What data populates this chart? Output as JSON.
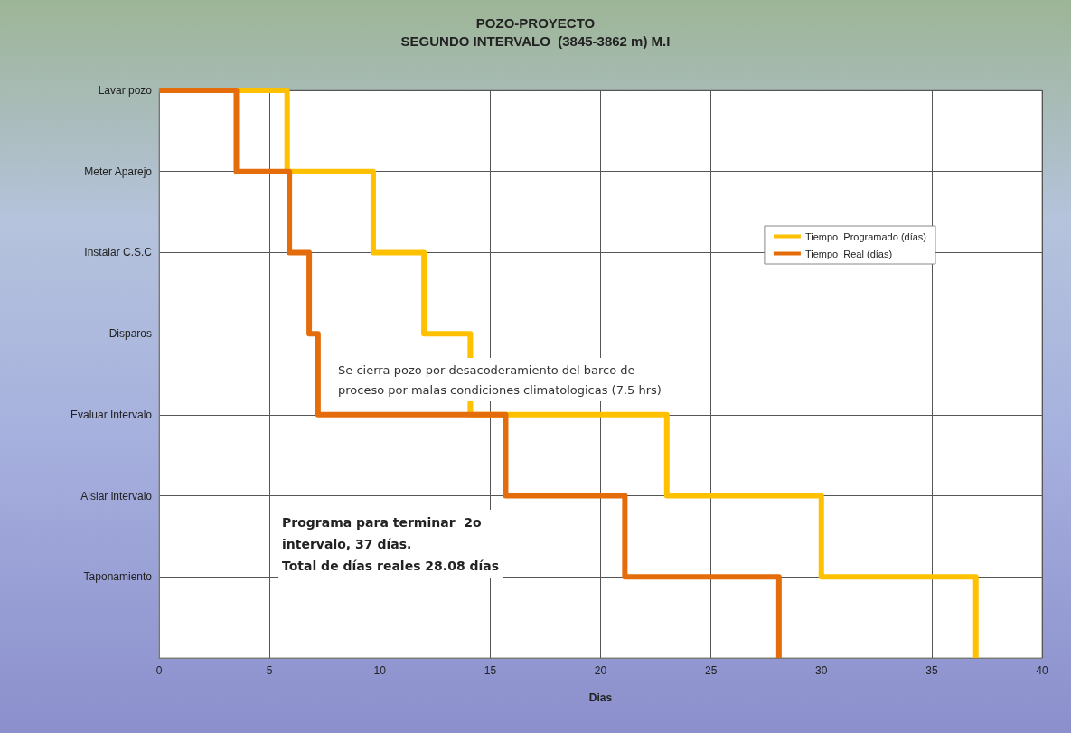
{
  "chart_data": {
    "type": "step",
    "title": "POZO-PROYECTO\nSEGUNDO INTERVALO  (3845-3862 m) M.I",
    "xlabel": "Dias",
    "orientation": "horizontal",
    "categories": [
      "Lavar pozo",
      "Meter Aparejo",
      "Instalar C.S.C",
      "Disparos",
      "Evaluar Intervalo",
      "Aislar intervalo",
      "Taponamiento",
      null
    ],
    "series": [
      {
        "name": "Tiempo  Programado (días)",
        "color": "#ffc000",
        "values": [
          0,
          5.8,
          9.7,
          12,
          14.1,
          23,
          30,
          37
        ]
      },
      {
        "name": "Tiempo  Real (días)",
        "color": "#e46c0a",
        "values": [
          0,
          3.5,
          5.9,
          6.8,
          7.2,
          15.7,
          21.1,
          28.08
        ]
      }
    ],
    "xlim": [
      0,
      40
    ],
    "xticks": [
      0,
      5,
      10,
      15,
      20,
      25,
      30,
      35,
      40
    ],
    "grid": true,
    "legend": "right",
    "marker": "none",
    "line_style": "solid",
    "annotations": [
      "Se cierra pozo por desacoderamiento del barco de\nproceso por malas condiciones climatologicas (7.5 hrs)",
      "Programa para terminar  2o\nintervalo, 37 días.\nTotal de días reales 28.08 días"
    ]
  }
}
